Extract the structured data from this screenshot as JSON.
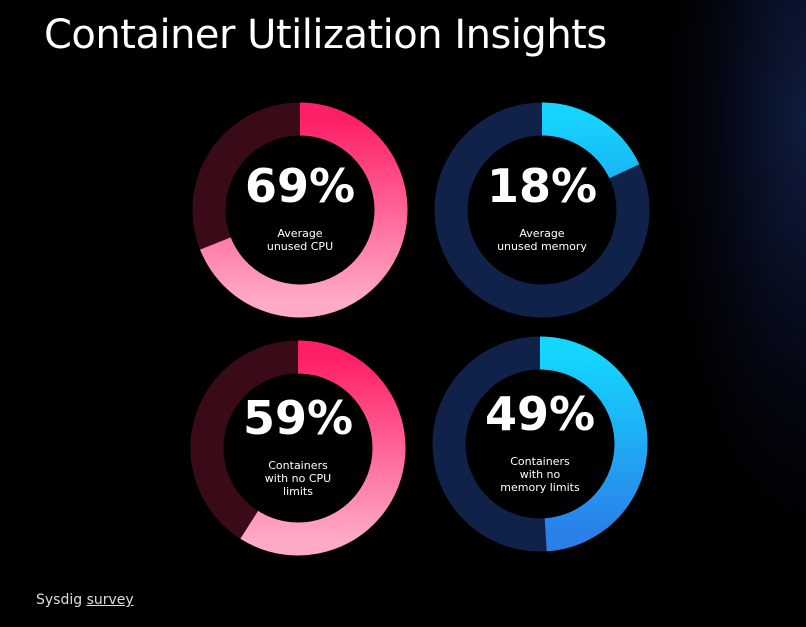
{
  "title": "Container Utilization Insights",
  "source": {
    "text": "Sysdig",
    "link": "survey"
  },
  "chart_data": [
    {
      "type": "donut",
      "values": [
        69
      ],
      "value_labels": [
        "69%"
      ],
      "total": 100,
      "label": [
        "Average",
        "unused CPU"
      ],
      "color": [
        "#ff1f66",
        "#ffaac6"
      ],
      "track_color": "#3a0b17"
    },
    {
      "type": "donut",
      "values": [
        18
      ],
      "value_labels": [
        "18%"
      ],
      "total": 100,
      "label": [
        "Average",
        "unused memory"
      ],
      "color": [
        "#17d3ff",
        "#19b8f5"
      ],
      "track_color": "#10214a"
    },
    {
      "type": "donut",
      "values": [
        59
      ],
      "value_labels": [
        "59%"
      ],
      "total": 100,
      "label": [
        "Containers",
        "with no CPU",
        "limits"
      ],
      "color": [
        "#ff1f66",
        "#ffaac6"
      ],
      "track_color": "#3a0b17"
    },
    {
      "type": "donut",
      "values": [
        49
      ],
      "value_labels": [
        "49%"
      ],
      "total": 100,
      "label": [
        "Containers",
        "with no",
        "memory limits"
      ],
      "color": [
        "#14d6ff",
        "#2b7fe8"
      ],
      "track_color": "#10214a"
    }
  ]
}
